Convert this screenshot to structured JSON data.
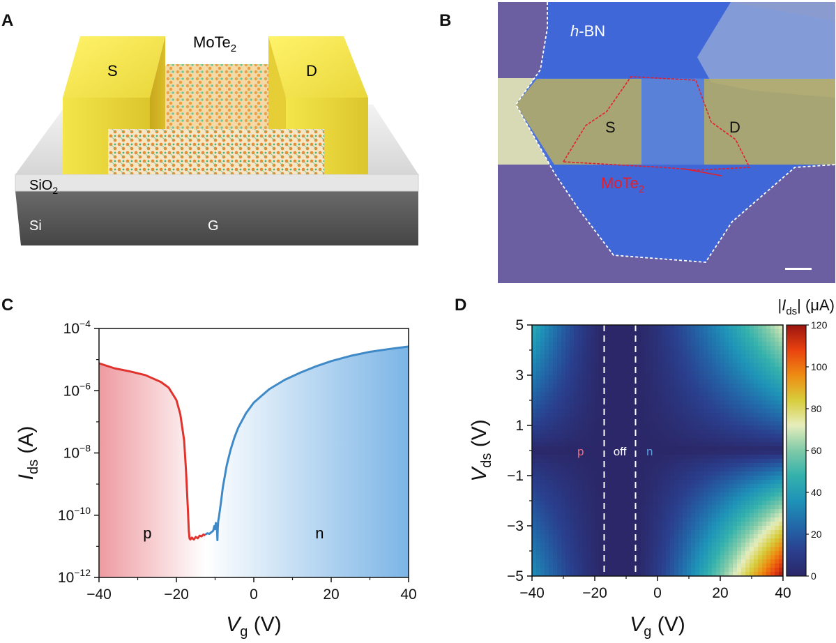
{
  "panels": {
    "a": {
      "letter": "A",
      "material_main": "MoTe",
      "material_sub": "2",
      "source": "S",
      "drain": "D",
      "oxide_main": "SiO",
      "oxide_sub": "2",
      "substrate": "Si",
      "gate": "G"
    },
    "b": {
      "letter": "B",
      "hbn_italic": "h",
      "hbn_rest": "-BN",
      "source": "S",
      "drain": "D",
      "material_main": "MoTe",
      "material_sub": "2"
    },
    "c": {
      "letter": "C"
    },
    "d": {
      "letter": "D",
      "region_p": "p",
      "region_off": "off",
      "region_n": "n"
    }
  },
  "chart_data": [
    {
      "id": "C",
      "type": "line",
      "xlabel_main": "V",
      "xlabel_sub": "g",
      "xlabel_unit": " (V)",
      "ylabel_main": "I",
      "ylabel_sub": "ds",
      "ylabel_unit": " (A)",
      "xlim": [
        -40,
        40
      ],
      "ylim": [
        -12,
        -4
      ],
      "yscale": "log",
      "xticks": [
        "−40",
        "−20",
        "0",
        "20",
        "40"
      ],
      "yticks": [
        {
          "base": "10",
          "exp": "−12"
        },
        {
          "base": "10",
          "exp": "−10"
        },
        {
          "base": "10",
          "exp": "−8"
        },
        {
          "base": "10",
          "exp": "−6"
        },
        {
          "base": "10",
          "exp": "−4"
        }
      ],
      "region_labels": {
        "p": "p",
        "n": "n"
      },
      "series": [
        {
          "name": "p-branch",
          "color": "#e0332e",
          "x": [
            -40,
            -36,
            -32,
            -28,
            -24,
            -22,
            -20,
            -19,
            -18,
            -17.5,
            -17,
            -16.8,
            -16.6,
            -16.4,
            -16,
            -15.5,
            -15,
            -14.5,
            -14,
            -13.5,
            -13,
            -12.5
          ],
          "log10_y": [
            -5.12,
            -5.28,
            -5.38,
            -5.5,
            -5.72,
            -5.9,
            -6.3,
            -6.75,
            -7.6,
            -8.6,
            -9.9,
            -10.5,
            -10.75,
            -10.78,
            -10.72,
            -10.78,
            -10.7,
            -10.74,
            -10.66,
            -10.68,
            -10.62,
            -10.65
          ]
        },
        {
          "name": "n-branch",
          "color": "#3f8ac6",
          "x": [
            -12.5,
            -12,
            -11.5,
            -11,
            -10.5,
            -10.2,
            -10,
            -9.8,
            -9.6,
            -9.5,
            -9.4,
            -9.3,
            -9.2,
            -9,
            -8.5,
            -8,
            -7,
            -6,
            -5,
            -4,
            -2,
            0,
            4,
            8,
            12,
            16,
            20,
            25,
            30,
            35,
            40
          ],
          "log10_y": [
            -10.62,
            -10.58,
            -10.6,
            -10.55,
            -10.5,
            -10.35,
            -10.45,
            -10.25,
            -10.3,
            -10.45,
            -10.8,
            -10.4,
            -10.2,
            -10.05,
            -9.6,
            -9.1,
            -8.4,
            -7.9,
            -7.5,
            -7.18,
            -6.72,
            -6.38,
            -5.95,
            -5.65,
            -5.42,
            -5.22,
            -5.05,
            -4.88,
            -4.75,
            -4.66,
            -4.58
          ]
        }
      ]
    },
    {
      "id": "D",
      "type": "heatmap",
      "xlabel_main": "V",
      "xlabel_sub": "g",
      "xlabel_unit": " (V)",
      "ylabel_main": "V",
      "ylabel_sub": "ds",
      "ylabel_unit": " (V)",
      "xlim": [
        -40,
        40
      ],
      "ylim": [
        -5,
        5
      ],
      "xticks": [
        "−40",
        "−20",
        "0",
        "20",
        "40"
      ],
      "yticks": [
        "−5",
        "−3",
        "−1",
        "1",
        "3",
        "5"
      ],
      "off_region_boundaries_vg": [
        -17,
        -7
      ],
      "colorbar": {
        "title_prefix": "|",
        "title_main": "I",
        "title_sub": "ds",
        "title_suffix": "| (μA)",
        "range": [
          0,
          120
        ],
        "ticks": [
          "0",
          "20",
          "40",
          "60",
          "80",
          "100",
          "120"
        ],
        "colors": [
          "#2b2768",
          "#2a3f8e",
          "#2268a8",
          "#1e93b8",
          "#34b1ac",
          "#7fcaa8",
          "#e6edbc",
          "#d8cd3c",
          "#ee8c12",
          "#e9430f",
          "#9b1410"
        ]
      },
      "corner_max_uA": {
        "top_right": 72,
        "bottom_right": 120,
        "top_left": 45,
        "bottom_left": 35
      }
    }
  ]
}
